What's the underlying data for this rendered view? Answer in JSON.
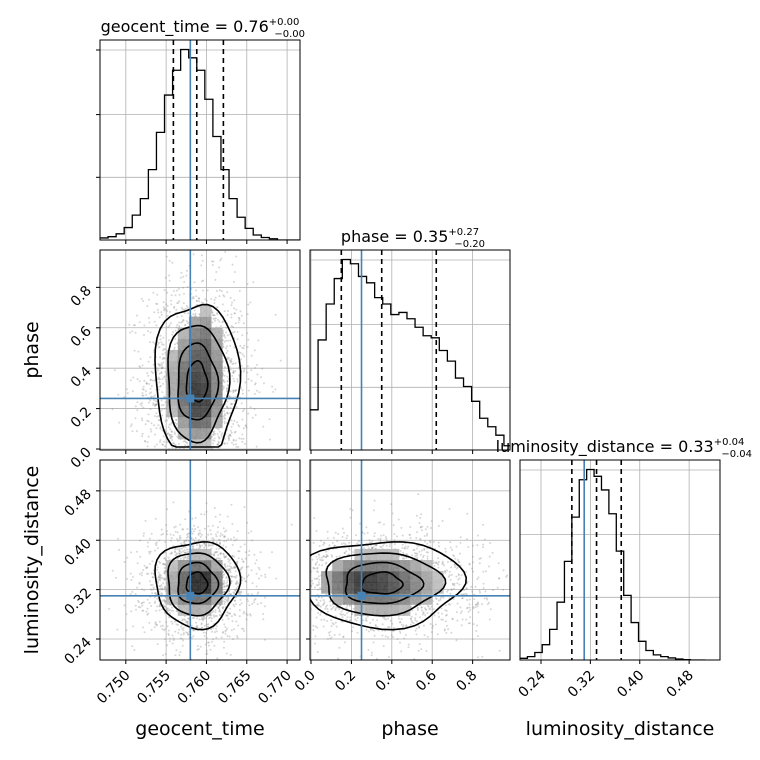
{
  "chart_data": {
    "type": "corner",
    "parameters": [
      "geocent_time",
      "phase",
      "luminosity_distance"
    ],
    "truths": {
      "geocent_time": 0.758,
      "phase": 0.25,
      "luminosity_distance": 0.31
    },
    "axes_ranges": {
      "geocent_time": [
        0.7468,
        0.7716
      ],
      "phase": [
        -0.005,
        0.985
      ],
      "luminosity_distance": [
        0.206,
        0.53
      ]
    },
    "ticks": {
      "geocent_time": [
        0.75,
        0.755,
        0.76,
        0.765,
        0.77
      ],
      "phase": [
        0.0,
        0.2,
        0.4,
        0.6,
        0.8
      ],
      "luminosity_distance": [
        0.24,
        0.32,
        0.4,
        0.48
      ]
    },
    "tick_labels": {
      "geocent_time": [
        "0.750",
        "0.755",
        "0.760",
        "0.765",
        "0.770"
      ],
      "phase": [
        "0.0",
        "0.2",
        "0.4",
        "0.6",
        "0.8"
      ],
      "luminosity_distance": [
        "0.24",
        "0.32",
        "0.40",
        "0.48"
      ]
    },
    "titles": {
      "geocent_time": {
        "name": "geocent_time",
        "value": "0.76",
        "plus": "+0.00",
        "minus": "−0.00"
      },
      "phase": {
        "name": "phase",
        "value": "0.35",
        "plus": "+0.27",
        "minus": "−0.20"
      },
      "luminosity_distance": {
        "name": "luminosity_distance",
        "value": "0.33",
        "plus": "+0.04",
        "minus": "−0.04"
      }
    },
    "quantiles": {
      "geocent_time": [
        0.7559,
        0.7588,
        0.7621
      ],
      "phase": [
        0.15,
        0.35,
        0.62
      ],
      "luminosity_distance": [
        0.29,
        0.33,
        0.37
      ]
    },
    "histograms": {
      "geocent_time": {
        "edges": [
          0.7468,
          0.7478,
          0.7488,
          0.7498,
          0.7508,
          0.7518,
          0.7528,
          0.7538,
          0.7548,
          0.7558,
          0.7568,
          0.7578,
          0.7588,
          0.7598,
          0.7608,
          0.7618,
          0.7628,
          0.7638,
          0.7648,
          0.7658,
          0.7668,
          0.7678,
          0.7688,
          0.7698,
          0.7708,
          0.7716
        ],
        "counts": [
          5,
          8,
          15,
          30,
          60,
          100,
          170,
          260,
          350,
          410,
          460,
          440,
          410,
          340,
          250,
          170,
          100,
          55,
          28,
          12,
          6,
          3,
          0,
          0,
          0
        ]
      },
      "phase": {
        "edges": [
          -0.005,
          0.035,
          0.075,
          0.115,
          0.155,
          0.195,
          0.235,
          0.275,
          0.315,
          0.355,
          0.395,
          0.435,
          0.475,
          0.515,
          0.555,
          0.595,
          0.635,
          0.675,
          0.715,
          0.755,
          0.795,
          0.835,
          0.875,
          0.915,
          0.955,
          0.985
        ],
        "counts": [
          190,
          520,
          690,
          810,
          900,
          880,
          820,
          790,
          720,
          690,
          640,
          650,
          620,
          580,
          540,
          530,
          470,
          420,
          340,
          300,
          230,
          150,
          110,
          70,
          20
        ]
      },
      "luminosity_distance": {
        "edges": [
          0.206,
          0.218,
          0.23,
          0.242,
          0.254,
          0.266,
          0.278,
          0.29,
          0.302,
          0.314,
          0.326,
          0.338,
          0.35,
          0.362,
          0.374,
          0.386,
          0.398,
          0.41,
          0.422,
          0.434,
          0.446,
          0.458,
          0.47,
          0.482,
          0.494,
          0.506
        ],
        "counts": [
          5,
          10,
          22,
          45,
          90,
          170,
          290,
          420,
          530,
          560,
          540,
          500,
          430,
          320,
          190,
          110,
          55,
          28,
          15,
          10,
          6,
          3,
          1,
          0,
          0
        ]
      }
    },
    "density_2d": [
      {
        "x": "geocent_time",
        "y": "phase",
        "mean": [
          0.7588,
          0.33
        ],
        "std": [
          0.0026,
          0.2
        ],
        "modes": [
          [
            0.7593,
            0.19
          ],
          [
            0.7596,
            0.57
          ]
        ]
      },
      {
        "x": "geocent_time",
        "y": "luminosity_distance",
        "mean": [
          0.7588,
          0.33
        ],
        "std": [
          0.0026,
          0.035
        ],
        "modes": [
          [
            0.7594,
            0.335
          ]
        ]
      },
      {
        "x": "phase",
        "y": "luminosity_distance",
        "mean": [
          0.35,
          0.33
        ],
        "std": [
          0.2,
          0.035
        ],
        "modes": [
          [
            0.2,
            0.335
          ]
        ]
      }
    ],
    "colors": {
      "truth": "#4682b4",
      "line": "#000000",
      "grid": "#b0b0b0",
      "points": "#8c8c8c"
    },
    "grid": true
  }
}
